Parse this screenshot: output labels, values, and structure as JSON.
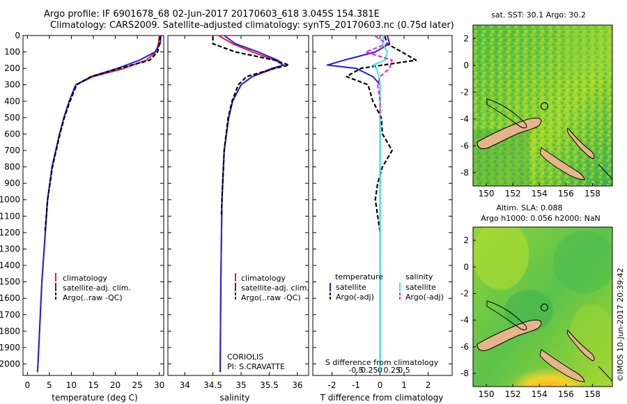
{
  "header": {
    "line1": "Argo profile: IF 6901678_68 02-Jun-2017 20170603_618 3.045S 154.381E",
    "line2": "Climatology: CARS2009. Satellite-adjusted climatology: synTS_20170603.nc (0.75d later)"
  },
  "side_stamp": "©IMOS 10-Jun-2017 20:39:42",
  "colors": {
    "climatology": "#e8211d",
    "satellite": "#1d1df0",
    "argo": "#000000",
    "salinity_sat": "#33e6f0",
    "salinity_argo": "#e020e0",
    "land": "#e6b48a"
  },
  "chart_data": [
    {
      "type": "line",
      "title": "",
      "xlabel": "temperature (deg C)",
      "ylabel": "",
      "xlim": [
        -1,
        31
      ],
      "ylim": [
        2070,
        0
      ],
      "xticks": [
        0,
        5,
        10,
        15,
        20,
        25,
        30
      ],
      "xtick_labels": [
        "0",
        "5",
        "10",
        "15",
        "20",
        "25",
        "30"
      ],
      "yticks": [
        0,
        100,
        200,
        300,
        400,
        500,
        600,
        700,
        800,
        900,
        1000,
        1100,
        1200,
        1300,
        1400,
        1500,
        1600,
        1700,
        1800,
        1900,
        2000
      ],
      "ytick_labels": [
        "0",
        "100",
        "200",
        "300",
        "400",
        "500",
        "600",
        "700",
        "800",
        "900",
        "1000",
        "1100",
        "1200",
        "1300",
        "1400",
        "1500",
        "1600",
        "1700",
        "1800",
        "1900",
        "2000"
      ],
      "legend": {
        "placement": "lower-middle",
        "entries": [
          "climatology",
          "satellite-adj. clim.",
          "Argo(..raw -QC)"
        ]
      },
      "series": [
        {
          "name": "climatology",
          "depth": [
            0,
            50,
            100,
            150,
            200,
            250,
            300,
            400,
            500,
            600,
            800,
            1000,
            1500,
            2000,
            2050
          ],
          "values": [
            30.0,
            29.8,
            29.2,
            27.0,
            22.0,
            15.0,
            11.0,
            9.5,
            8.3,
            7.3,
            5.6,
            4.6,
            3.3,
            2.4,
            2.3
          ]
        },
        {
          "name": "satellite-adj. clim.",
          "depth": [
            0,
            50,
            100,
            150,
            200,
            250,
            300,
            400,
            500,
            600,
            800,
            1000,
            1500,
            2000,
            2050
          ],
          "values": [
            30.4,
            30.2,
            29.0,
            25.5,
            20.5,
            14.5,
            11.0,
            9.5,
            8.3,
            7.3,
            5.6,
            4.6,
            3.3,
            2.4,
            2.3
          ]
        },
        {
          "name": "Argo(..raw -QC)",
          "depth": [
            5,
            50,
            100,
            150,
            200,
            250,
            300,
            400,
            500,
            600,
            800,
            1000,
            1200
          ],
          "values": [
            30.2,
            30.0,
            29.6,
            27.8,
            21.0,
            14.5,
            11.2,
            9.7,
            8.4,
            7.4,
            5.7,
            4.6,
            4.0
          ]
        }
      ]
    },
    {
      "type": "line",
      "title": "",
      "xlabel": "salinity",
      "ylabel": "",
      "xlim": [
        33.7,
        36.2
      ],
      "ylim": [
        2070,
        0
      ],
      "xticks": [
        34,
        34.5,
        35,
        35.5,
        36
      ],
      "xtick_labels": [
        "34",
        "34.5",
        "35",
        "35.5",
        "36"
      ],
      "legend": {
        "placement": "lower-right",
        "entries": [
          "climatology",
          "satellite-adj. clim.",
          "Argo(..raw -QC)"
        ]
      },
      "annotation": [
        "CORIOLIS",
        "PI: S.CRAVATTE"
      ],
      "series": [
        {
          "name": "climatology",
          "depth": [
            0,
            50,
            100,
            150,
            180,
            200,
            250,
            300,
            400,
            500,
            700,
            1000,
            1500,
            2000,
            2050
          ],
          "values": [
            34.6,
            34.85,
            35.2,
            35.6,
            35.75,
            35.6,
            35.2,
            35.0,
            34.85,
            34.78,
            34.7,
            34.66,
            34.64,
            34.63,
            34.63
          ]
        },
        {
          "name": "satellite-adj. clim.",
          "depth": [
            0,
            50,
            100,
            150,
            180,
            200,
            250,
            300,
            400,
            500,
            700,
            1000,
            1500,
            2000,
            2050
          ],
          "values": [
            34.7,
            34.9,
            35.3,
            35.65,
            35.75,
            35.55,
            35.2,
            35.0,
            34.85,
            34.78,
            34.7,
            34.66,
            34.64,
            34.63,
            34.63
          ]
        },
        {
          "name": "Argo(..raw -QC)",
          "depth": [
            5,
            50,
            100,
            150,
            180,
            200,
            250,
            300,
            400,
            500,
            700,
            1000,
            1100
          ],
          "values": [
            34.5,
            34.5,
            34.9,
            35.6,
            35.85,
            35.6,
            35.1,
            34.95,
            34.84,
            34.77,
            34.7,
            34.66,
            34.65
          ]
        }
      ]
    },
    {
      "type": "line",
      "title": "",
      "xlabel": "T difference from climatology",
      "xlabel_top": "S difference from climatology",
      "ylabel": "",
      "xlim": [
        -2.8,
        3.0
      ],
      "ylim": [
        2070,
        0
      ],
      "xticks": [
        -2,
        -1,
        0,
        1,
        2
      ],
      "xtick_labels": [
        "-2",
        "-1",
        "0",
        "1",
        "2"
      ],
      "s_xticks_in_T_units": [
        -1.0,
        -0.5,
        0,
        0.5,
        1.0
      ],
      "s_xtick_labels": [
        "-0.5",
        "-0.25",
        "0",
        "0.25",
        "0.5"
      ],
      "legend": {
        "placement": "lower",
        "groups": [
          "temperature",
          "salinity"
        ],
        "entries": [
          "satellite",
          "Argo(-adj)",
          "satellite",
          "Argo(-adj)"
        ]
      },
      "series": [
        {
          "name": "temperature satellite",
          "depth": [
            0,
            50,
            100,
            150,
            180,
            200,
            250,
            300,
            400,
            500,
            700,
            1000,
            1500,
            2000,
            2050
          ],
          "values": [
            0.3,
            0.4,
            -0.2,
            -1.5,
            -2.2,
            -1.0,
            -0.3,
            0.0,
            0.0,
            0.0,
            0.0,
            0.0,
            0.0,
            0.0,
            0.0
          ]
        },
        {
          "name": "temperature Argo(-adj)",
          "depth": [
            5,
            50,
            100,
            150,
            200,
            250,
            300,
            400,
            500,
            600,
            700,
            800,
            900,
            1000,
            1100,
            1200
          ],
          "values": [
            0.2,
            0.3,
            0.9,
            1.5,
            -0.8,
            -1.4,
            -0.5,
            -0.3,
            0.05,
            0.1,
            0.5,
            0.1,
            -0.1,
            -0.2,
            -0.1,
            0.0
          ]
        },
        {
          "name": "salinity satellite",
          "depth": [
            0,
            50,
            100,
            150,
            180,
            200,
            250,
            300,
            400,
            500,
            700,
            1000,
            1500,
            2000,
            2050
          ],
          "values": [
            0.15,
            0.1,
            0.3,
            0.2,
            -0.3,
            -0.15,
            -0.05,
            0.0,
            0.0,
            0.0,
            0.0,
            0.0,
            0.0,
            0.0,
            0.0
          ]
        },
        {
          "name": "salinity Argo(-adj)",
          "depth": [
            5,
            50,
            100,
            150,
            200,
            250,
            300,
            400,
            500
          ],
          "values": [
            -0.2,
            0.3,
            -0.6,
            0.5,
            0.4,
            0.0,
            -0.1,
            0.0,
            0.0
          ]
        }
      ]
    },
    {
      "type": "heatmap",
      "title": "sat. SST: 30.1  Argo: 30.2",
      "xticks": [
        150,
        152,
        154,
        156,
        158
      ],
      "xtick_labels": [
        "150",
        "152",
        "154",
        "156",
        "158"
      ],
      "yticks": [
        2,
        0,
        -2,
        -4,
        -6,
        -8
      ],
      "ytick_labels": [
        "2",
        "0",
        "-2",
        "-4",
        "-6",
        "-8"
      ],
      "xlim": [
        149,
        159.5
      ],
      "ylim": [
        -9,
        3
      ],
      "marker": {
        "lon": 154.381,
        "lat": -3.045
      }
    },
    {
      "type": "heatmap",
      "title_line1": "Altim. SLA: 0.088",
      "title_line2": "Argo h1000: 0.056 h2000: NaN",
      "xticks": [
        150,
        152,
        154,
        156,
        158
      ],
      "xtick_labels": [
        "150",
        "152",
        "154",
        "156",
        "158"
      ],
      "yticks": [
        2,
        0,
        -2,
        -4,
        -6,
        -8
      ],
      "ytick_labels": [
        "2",
        "0",
        "-2",
        "-4",
        "-6",
        "-8"
      ],
      "xlim": [
        149,
        159.5
      ],
      "ylim": [
        -9,
        3
      ],
      "marker": {
        "lon": 154.381,
        "lat": -3.045
      }
    }
  ]
}
